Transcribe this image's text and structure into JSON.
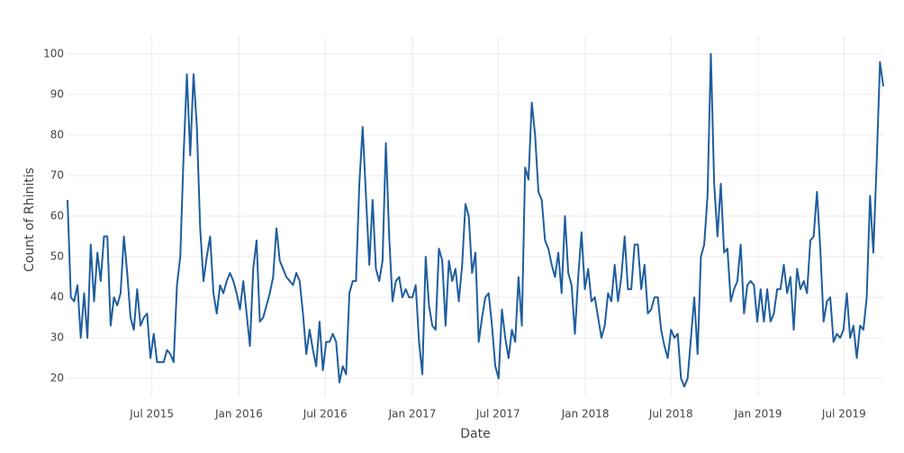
{
  "chart_data": {
    "type": "line",
    "x_label": "Date",
    "y_label": "Count of Rhinitis",
    "color": "#1f5e9e",
    "grid": true,
    "xlim": [
      "2015-01-04",
      "2019-09-22"
    ],
    "xticks": [
      {
        "value": "2015-07-01",
        "label": "Jul 2015"
      },
      {
        "value": "2016-01-01",
        "label": "Jan 2016"
      },
      {
        "value": "2016-07-01",
        "label": "Jul 2016"
      },
      {
        "value": "2017-01-01",
        "label": "Jan 2017"
      },
      {
        "value": "2017-07-01",
        "label": "Jul 2017"
      },
      {
        "value": "2018-01-01",
        "label": "Jan 2018"
      },
      {
        "value": "2018-07-01",
        "label": "Jul 2018"
      },
      {
        "value": "2019-01-01",
        "label": "Jan 2019"
      },
      {
        "value": "2019-07-01",
        "label": "Jul 2019"
      }
    ],
    "ylim": [
      15.6,
      104.4
    ],
    "yticks": [
      20,
      30,
      40,
      50,
      60,
      70,
      80,
      90,
      100
    ],
    "x": [
      "2015-01-04",
      "2015-01-11",
      "2015-01-18",
      "2015-01-25",
      "2015-02-01",
      "2015-02-08",
      "2015-02-15",
      "2015-02-22",
      "2015-03-01",
      "2015-03-08",
      "2015-03-15",
      "2015-03-22",
      "2015-03-29",
      "2015-04-05",
      "2015-04-12",
      "2015-04-19",
      "2015-04-26",
      "2015-05-03",
      "2015-05-10",
      "2015-05-17",
      "2015-05-24",
      "2015-05-31",
      "2015-06-07",
      "2015-06-14",
      "2015-06-21",
      "2015-06-28",
      "2015-07-05",
      "2015-07-12",
      "2015-07-19",
      "2015-07-26",
      "2015-08-02",
      "2015-08-09",
      "2015-08-16",
      "2015-08-23",
      "2015-08-30",
      "2015-09-06",
      "2015-09-13",
      "2015-09-20",
      "2015-09-27",
      "2015-10-04",
      "2015-10-11",
      "2015-10-18",
      "2015-10-25",
      "2015-11-01",
      "2015-11-08",
      "2015-11-15",
      "2015-11-22",
      "2015-11-29",
      "2015-12-06",
      "2015-12-13",
      "2015-12-20",
      "2015-12-27",
      "2016-01-03",
      "2016-01-10",
      "2016-01-17",
      "2016-01-24",
      "2016-01-31",
      "2016-02-07",
      "2016-02-14",
      "2016-02-21",
      "2016-02-28",
      "2016-03-06",
      "2016-03-13",
      "2016-03-20",
      "2016-03-27",
      "2016-04-03",
      "2016-04-10",
      "2016-04-17",
      "2016-04-24",
      "2016-05-01",
      "2016-05-08",
      "2016-05-15",
      "2016-05-22",
      "2016-05-29",
      "2016-06-05",
      "2016-06-12",
      "2016-06-19",
      "2016-06-26",
      "2016-07-03",
      "2016-07-10",
      "2016-07-17",
      "2016-07-24",
      "2016-07-31",
      "2016-08-07",
      "2016-08-14",
      "2016-08-21",
      "2016-08-28",
      "2016-09-04",
      "2016-09-11",
      "2016-09-18",
      "2016-09-25",
      "2016-10-02",
      "2016-10-09",
      "2016-10-16",
      "2016-10-23",
      "2016-10-30",
      "2016-11-06",
      "2016-11-13",
      "2016-11-20",
      "2016-11-27",
      "2016-12-04",
      "2016-12-11",
      "2016-12-18",
      "2016-12-25",
      "2017-01-01",
      "2017-01-08",
      "2017-01-15",
      "2017-01-22",
      "2017-01-29",
      "2017-02-05",
      "2017-02-12",
      "2017-02-19",
      "2017-02-26",
      "2017-03-05",
      "2017-03-12",
      "2017-03-19",
      "2017-03-26",
      "2017-04-02",
      "2017-04-09",
      "2017-04-16",
      "2017-04-23",
      "2017-04-30",
      "2017-05-07",
      "2017-05-14",
      "2017-05-21",
      "2017-05-28",
      "2017-06-04",
      "2017-06-11",
      "2017-06-18",
      "2017-06-25",
      "2017-07-02",
      "2017-07-09",
      "2017-07-16",
      "2017-07-23",
      "2017-07-30",
      "2017-08-06",
      "2017-08-13",
      "2017-08-20",
      "2017-08-27",
      "2017-09-03",
      "2017-09-10",
      "2017-09-17",
      "2017-09-24",
      "2017-10-01",
      "2017-10-08",
      "2017-10-15",
      "2017-10-22",
      "2017-10-29",
      "2017-11-05",
      "2017-11-12",
      "2017-11-19",
      "2017-11-26",
      "2017-12-03",
      "2017-12-10",
      "2017-12-17",
      "2017-12-24",
      "2017-12-31",
      "2018-01-07",
      "2018-01-14",
      "2018-01-21",
      "2018-01-28",
      "2018-02-04",
      "2018-02-11",
      "2018-02-18",
      "2018-02-25",
      "2018-03-04",
      "2018-03-11",
      "2018-03-18",
      "2018-03-25",
      "2018-04-01",
      "2018-04-08",
      "2018-04-15",
      "2018-04-22",
      "2018-04-29",
      "2018-05-06",
      "2018-05-13",
      "2018-05-20",
      "2018-05-27",
      "2018-06-03",
      "2018-06-10",
      "2018-06-17",
      "2018-06-24",
      "2018-07-01",
      "2018-07-08",
      "2018-07-15",
      "2018-07-22",
      "2018-07-29",
      "2018-08-05",
      "2018-08-12",
      "2018-08-19",
      "2018-08-26",
      "2018-09-02",
      "2018-09-09",
      "2018-09-16",
      "2018-09-23",
      "2018-09-30",
      "2018-10-07",
      "2018-10-14",
      "2018-10-21",
      "2018-10-28",
      "2018-11-04",
      "2018-11-11",
      "2018-11-18",
      "2018-11-25",
      "2018-12-02",
      "2018-12-09",
      "2018-12-16",
      "2018-12-23",
      "2018-12-30",
      "2019-01-06",
      "2019-01-13",
      "2019-01-20",
      "2019-01-27",
      "2019-02-03",
      "2019-02-10",
      "2019-02-17",
      "2019-02-24",
      "2019-03-03",
      "2019-03-10",
      "2019-03-17",
      "2019-03-24",
      "2019-03-31",
      "2019-04-07",
      "2019-04-14",
      "2019-04-21",
      "2019-04-28",
      "2019-05-05",
      "2019-05-12",
      "2019-05-19",
      "2019-05-26",
      "2019-06-02",
      "2019-06-09",
      "2019-06-16",
      "2019-06-23",
      "2019-06-30",
      "2019-07-07",
      "2019-07-14",
      "2019-07-21",
      "2019-07-28",
      "2019-08-04",
      "2019-08-11",
      "2019-08-18",
      "2019-08-25",
      "2019-09-01",
      "2019-09-08",
      "2019-09-15",
      "2019-09-22"
    ],
    "values": [
      64,
      40,
      39,
      43,
      30,
      41,
      30,
      53,
      39,
      51,
      44,
      55,
      55,
      33,
      40,
      38,
      41,
      55,
      46,
      35,
      32,
      42,
      33,
      35,
      36,
      25,
      31,
      24,
      24,
      24,
      27,
      26,
      24,
      43,
      50,
      75,
      95,
      75,
      95,
      82,
      57,
      44,
      50,
      55,
      41,
      36,
      43,
      41,
      44,
      46,
      44,
      41,
      37,
      44,
      36,
      28,
      47,
      54,
      34,
      35,
      38,
      41,
      45,
      57,
      49,
      47,
      45,
      44,
      43,
      46,
      44,
      36,
      26,
      32,
      27,
      23,
      34,
      22,
      29,
      29,
      31,
      29,
      19,
      23,
      21,
      41,
      44,
      44,
      68,
      82,
      65,
      48,
      64,
      47,
      44,
      49,
      78,
      55,
      39,
      44,
      45,
      40,
      42,
      40,
      40,
      43,
      29,
      21,
      50,
      38,
      33,
      32,
      52,
      49,
      33,
      49,
      44,
      47,
      39,
      48,
      63,
      60,
      46,
      51,
      29,
      35,
      40,
      41,
      33,
      23,
      20,
      37,
      30,
      25,
      32,
      29,
      45,
      33,
      72,
      69,
      88,
      80,
      66,
      64,
      54,
      52,
      48,
      45,
      51,
      41,
      60,
      46,
      43,
      31,
      45,
      56,
      42,
      47,
      39,
      40,
      35,
      30,
      33,
      41,
      39,
      48,
      39,
      45,
      55,
      42,
      42,
      53,
      53,
      42,
      48,
      36,
      37,
      40,
      40,
      32,
      28,
      25,
      32,
      30,
      31,
      20,
      18,
      20,
      30,
      40,
      26,
      50,
      53,
      65,
      100,
      68,
      55,
      68,
      51,
      52,
      39,
      42,
      44,
      53,
      36,
      43,
      44,
      43,
      34,
      42,
      34,
      42,
      34,
      36,
      42,
      42,
      48,
      41,
      45,
      32,
      47,
      42,
      44,
      41,
      54,
      55,
      66,
      52,
      34,
      39,
      40,
      29,
      31,
      30,
      32,
      41,
      30,
      33,
      25,
      33,
      32,
      40,
      65,
      51,
      73,
      98,
      92
    ]
  }
}
